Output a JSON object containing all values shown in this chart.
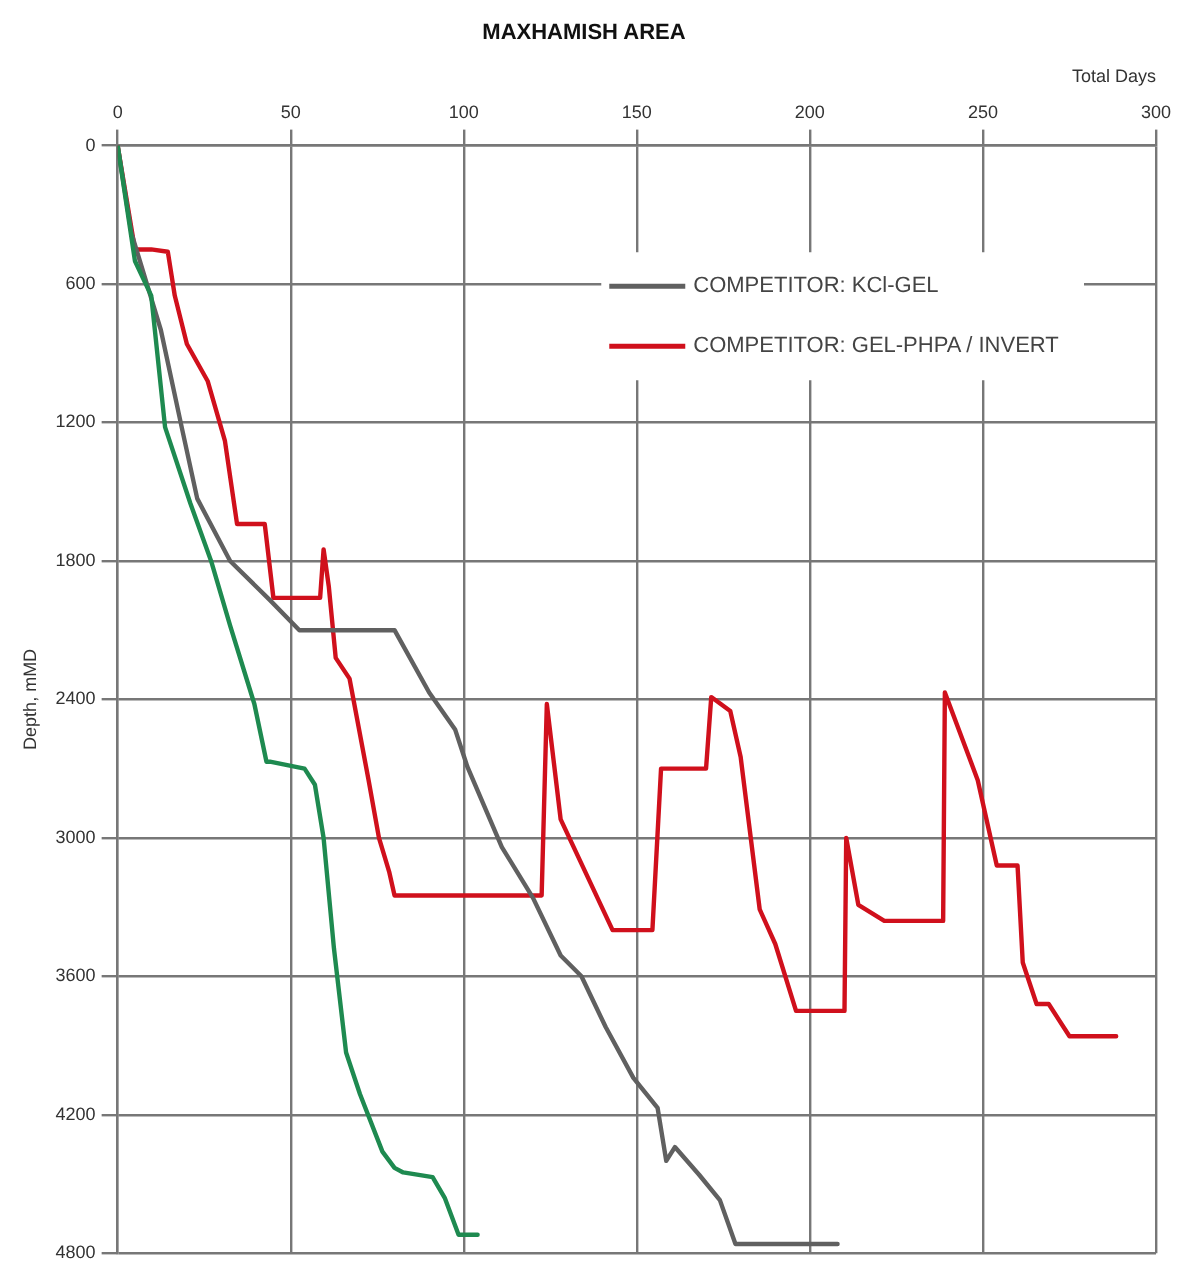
{
  "chart_data": {
    "type": "line",
    "title": "MAXHAMISH AREA",
    "xlabel": "Total Days",
    "ylabel": "Depth, mMD",
    "xlim": [
      0,
      300
    ],
    "xticks": [
      0,
      50,
      100,
      150,
      200,
      250,
      300
    ],
    "ylim": [
      4800,
      0
    ],
    "yticks": [
      0,
      600,
      1200,
      1800,
      2400,
      3000,
      3600,
      4200,
      4800
    ],
    "grid": true,
    "legend": "top right",
    "marker": "none",
    "line_style": "solid",
    "series": [
      {
        "color": "#1e8a50",
        "x": [
          0,
          5,
          9.7,
          13.7,
          21,
          27,
          32.5,
          39.5,
          43,
          44,
          54,
          57,
          59.5,
          62.5,
          66,
          70,
          76.5,
          80,
          82.5,
          91,
          94.5,
          98.5,
          104
        ],
        "values": [
          0,
          500,
          650,
          1220,
          1550,
          1800,
          2080,
          2420,
          2670,
          2670,
          2700,
          2770,
          3000,
          3480,
          3930,
          4110,
          4360,
          4430,
          4450,
          4470,
          4560,
          4720,
          4720
        ]
      },
      {
        "name": "COMPETITOR: KCl-GEL",
        "color": "#606060",
        "x": [
          0,
          4,
          12.5,
          18.5,
          23,
          32.5,
          44,
          52.5,
          80,
          90,
          97.5,
          101,
          111,
          120,
          128,
          134,
          141,
          149,
          156,
          158.5,
          161,
          168,
          174,
          178.5,
          208
        ],
        "values": [
          0,
          380,
          800,
          1220,
          1530,
          1800,
          1970,
          2100,
          2100,
          2370,
          2530,
          2690,
          3040,
          3260,
          3510,
          3600,
          3820,
          4040,
          4170,
          4400,
          4340,
          4460,
          4570,
          4760,
          4760
        ]
      },
      {
        "name": "COMPETITOR: GEL-PHPA / INVERT",
        "color": "#d0101c",
        "x": [
          0,
          5,
          9.7,
          14.5,
          16.5,
          20,
          26,
          31,
          34.5,
          42.5,
          45,
          58.5,
          59.5,
          61,
          63,
          67,
          72.5,
          75.5,
          78.5,
          80,
          122.5,
          124,
          128,
          143,
          154.5,
          157,
          170,
          171.5,
          177,
          180,
          185.5,
          190,
          196,
          210,
          210.5,
          214,
          221.5,
          238.5,
          239,
          248.5,
          254,
          260,
          261.5,
          265.5,
          269,
          275,
          288.5
        ],
        "values": [
          0,
          450,
          450,
          460,
          650,
          860,
          1020,
          1280,
          1640,
          1640,
          1960,
          1960,
          1750,
          1910,
          2220,
          2310,
          2750,
          3000,
          3150,
          3250,
          3250,
          2420,
          2920,
          3400,
          3400,
          2700,
          2700,
          2390,
          2450,
          2650,
          3310,
          3460,
          3750,
          3750,
          3000,
          3290,
          3360,
          3360,
          2370,
          2750,
          3120,
          3120,
          3540,
          3720,
          3720,
          3860,
          3860
        ]
      }
    ]
  }
}
